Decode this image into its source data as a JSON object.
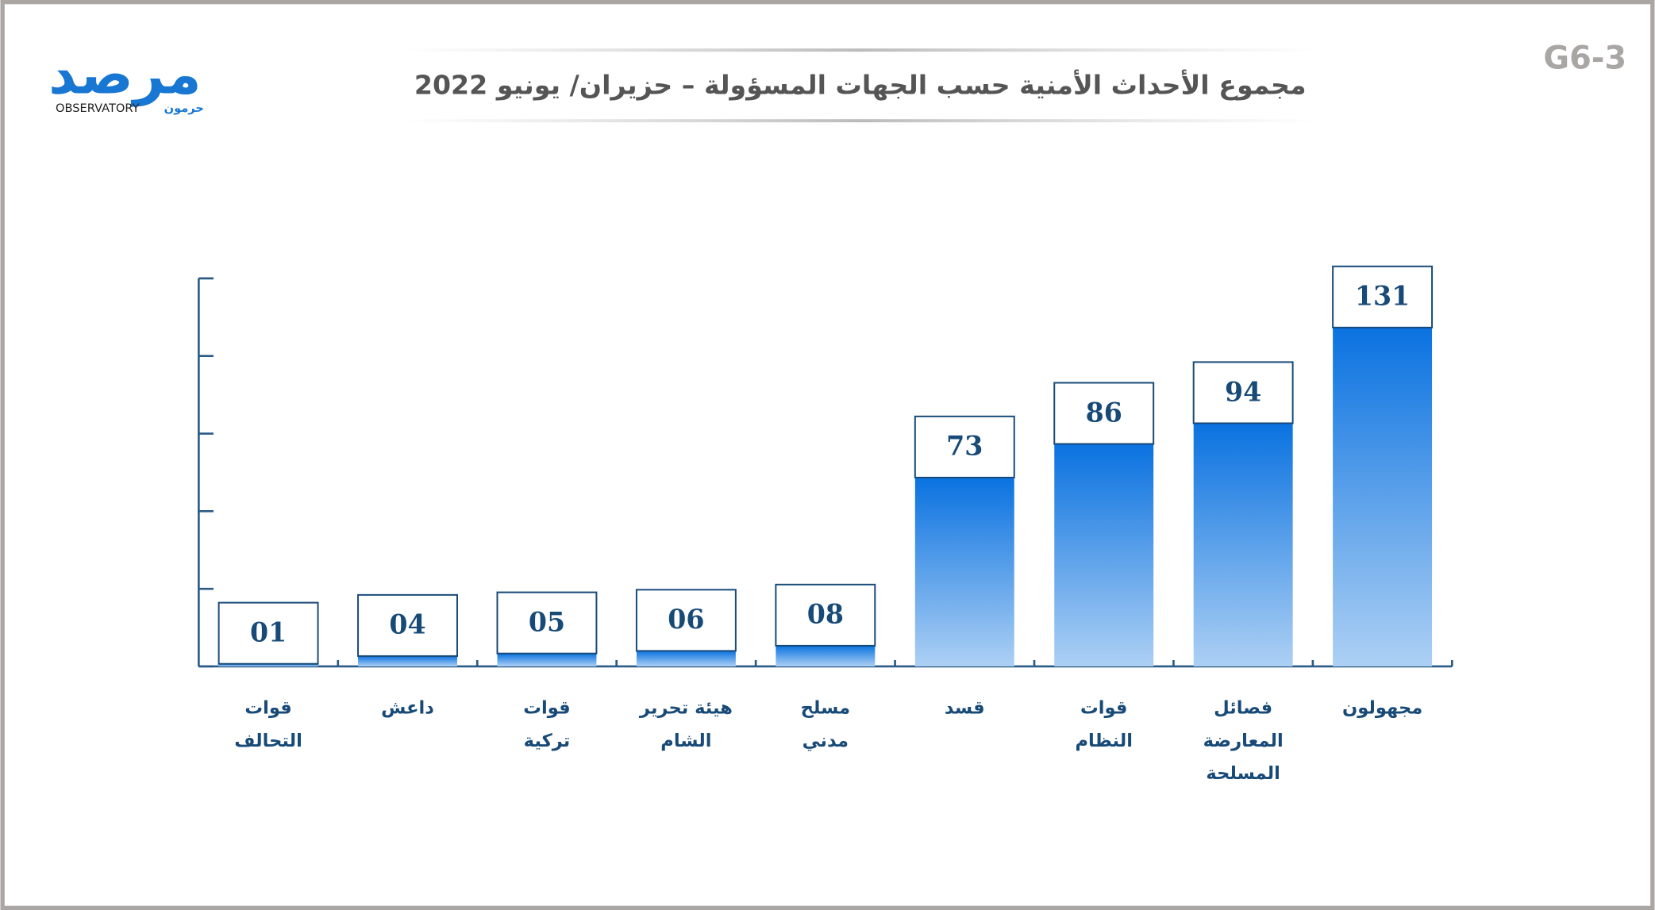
{
  "page_label": "G6-3",
  "logo": {
    "main": "مرصد",
    "latin": "OBSERVATORY",
    "sub": "حرمون"
  },
  "chart_data": {
    "type": "bar",
    "title": "مجموع الأحداث الأمنية حسب الجهات المسؤولة – حزيران/ يونيو 2022",
    "categories": [
      [
        "قوات",
        "التحالف"
      ],
      [
        "داعش"
      ],
      [
        "قوات",
        "تركية"
      ],
      [
        "هيئة تحرير",
        "الشام"
      ],
      [
        "مسلح",
        "مدني"
      ],
      [
        "قسد"
      ],
      [
        "قوات",
        "النظام"
      ],
      [
        "فصائل",
        "المعارضة",
        "المسلحة"
      ],
      [
        "مجهولون"
      ]
    ],
    "values": [
      1,
      4,
      5,
      6,
      8,
      73,
      86,
      94,
      131
    ],
    "value_labels": [
      "01",
      "04",
      "05",
      "06",
      "08",
      "73",
      "86",
      "94",
      "131"
    ],
    "color": "#0a72e0",
    "ylim": [
      0,
      150
    ],
    "yticks": [
      0,
      30,
      60,
      90,
      120,
      150
    ]
  }
}
